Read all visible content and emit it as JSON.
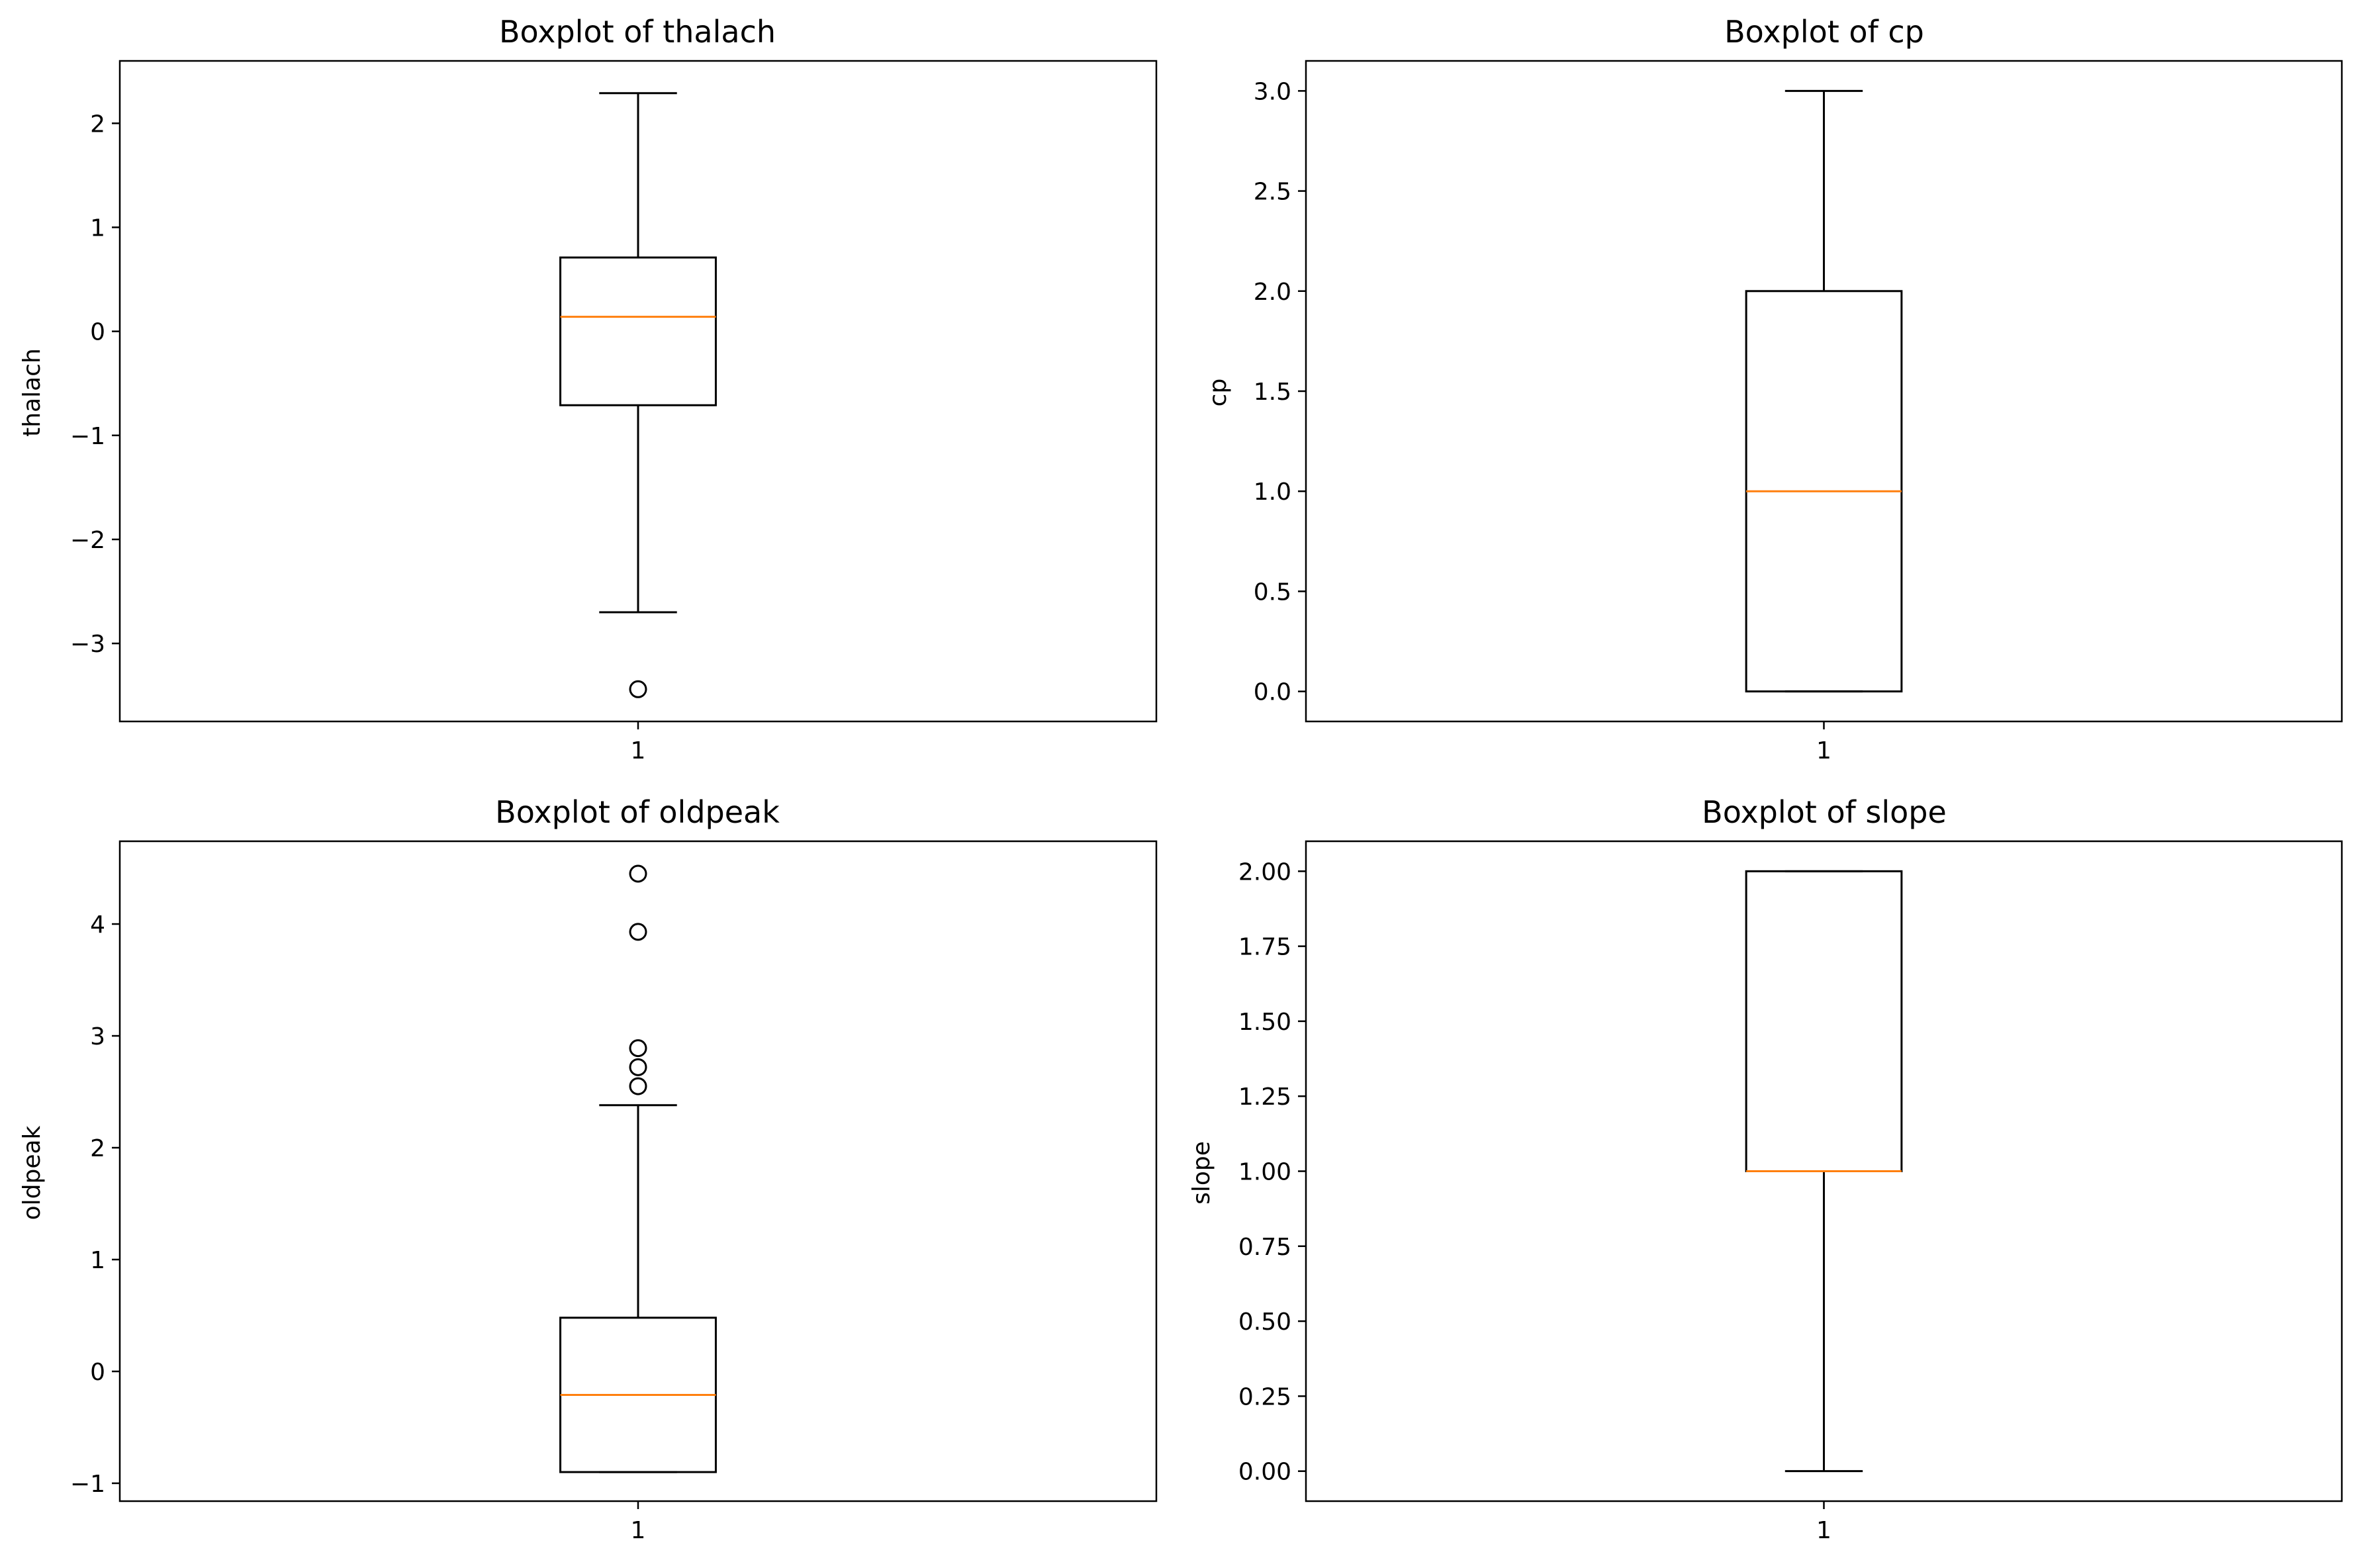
{
  "figure": {
    "background": "#ffffff",
    "box_color": "#000000",
    "median_color": "#ff7f0e",
    "grid": false
  },
  "chart_data": [
    {
      "type": "boxplot",
      "title": "Boxplot of thalach",
      "xlabel": "",
      "ylabel": "thalach",
      "ylim": [
        -3.75,
        2.6
      ],
      "yticks": [
        -3,
        -2,
        -1,
        0,
        1,
        2
      ],
      "ytick_labels": [
        "−3",
        "−2",
        "−1",
        "0",
        "1",
        "2"
      ],
      "xtick_labels": [
        "1"
      ],
      "box": {
        "whisker_low": -2.7,
        "q1": -0.71,
        "median": 0.14,
        "q3": 0.71,
        "whisker_high": 2.29,
        "outliers": [
          -3.44
        ]
      }
    },
    {
      "type": "boxplot",
      "title": "Boxplot of cp",
      "xlabel": "",
      "ylabel": "cp",
      "ylim": [
        -0.15,
        3.15
      ],
      "yticks": [
        0.0,
        0.5,
        1.0,
        1.5,
        2.0,
        2.5,
        3.0
      ],
      "ytick_labels": [
        "0.0",
        "0.5",
        "1.0",
        "1.5",
        "2.0",
        "2.5",
        "3.0"
      ],
      "xtick_labels": [
        "1"
      ],
      "box": {
        "whisker_low": 0.0,
        "q1": 0.0,
        "median": 1.0,
        "q3": 2.0,
        "whisker_high": 3.0,
        "outliers": []
      }
    },
    {
      "type": "boxplot",
      "title": "Boxplot of oldpeak",
      "xlabel": "",
      "ylabel": "oldpeak",
      "ylim": [
        -1.16,
        4.74
      ],
      "yticks": [
        -1,
        0,
        1,
        2,
        3,
        4
      ],
      "ytick_labels": [
        "−1",
        "0",
        "1",
        "2",
        "3",
        "4"
      ],
      "xtick_labels": [
        "1"
      ],
      "box": {
        "whisker_low": -0.9,
        "q1": -0.9,
        "median": -0.21,
        "q3": 0.48,
        "whisker_high": 2.38,
        "outliers": [
          2.55,
          2.72,
          2.89,
          3.93,
          4.45
        ]
      }
    },
    {
      "type": "boxplot",
      "title": "Boxplot of slope",
      "xlabel": "",
      "ylabel": "slope",
      "ylim": [
        -0.1,
        2.1
      ],
      "yticks": [
        0.0,
        0.25,
        0.5,
        0.75,
        1.0,
        1.25,
        1.5,
        1.75,
        2.0
      ],
      "ytick_labels": [
        "0.00",
        "0.25",
        "0.50",
        "0.75",
        "1.00",
        "1.25",
        "1.50",
        "1.75",
        "2.00"
      ],
      "xtick_labels": [
        "1"
      ],
      "box": {
        "whisker_low": 0.0,
        "q1": 1.0,
        "median": 1.0,
        "q3": 2.0,
        "whisker_high": 2.0,
        "outliers": []
      }
    }
  ]
}
